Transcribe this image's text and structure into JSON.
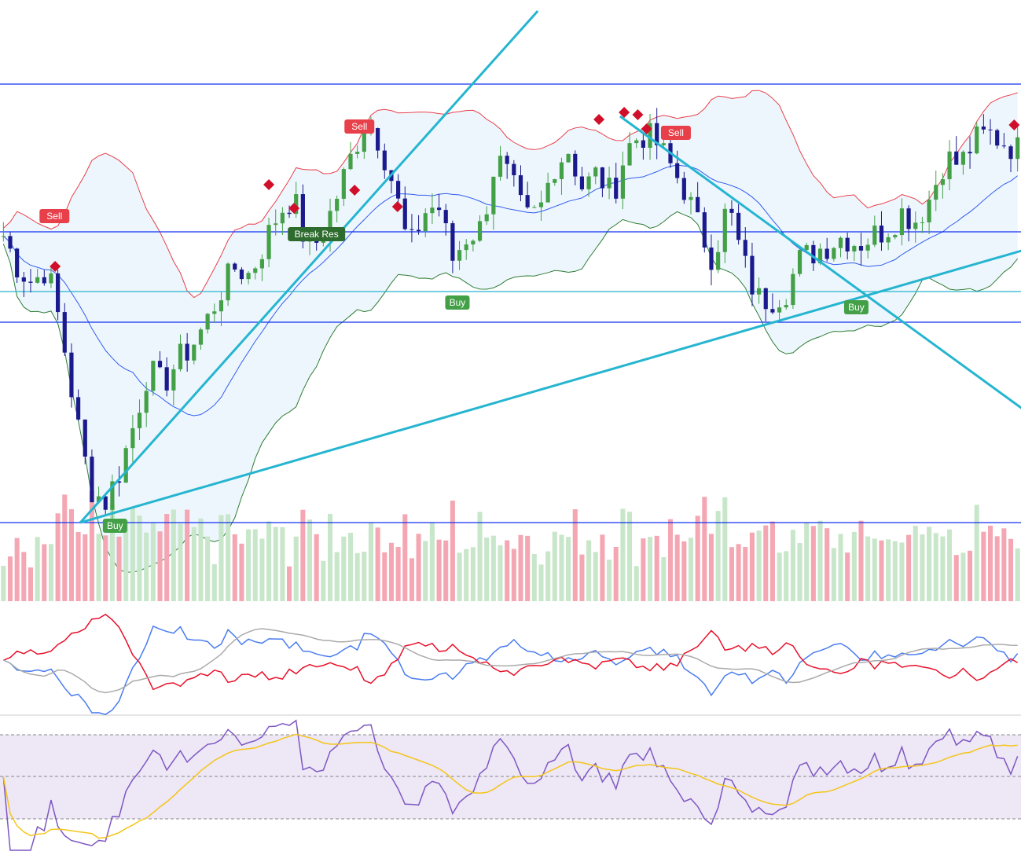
{
  "chart_data": {
    "type": "candlestick",
    "title": "",
    "ylim": [
      0,
      70
    ],
    "bars": 150,
    "close_keypoints": [
      40,
      36,
      34,
      36,
      28,
      17,
      8,
      6,
      10,
      16,
      23,
      21,
      24,
      26,
      29,
      33,
      36,
      35,
      39,
      43,
      45,
      38,
      40,
      45,
      50,
      55,
      52,
      46,
      38,
      43,
      44,
      37,
      40,
      41,
      50,
      47,
      42,
      43,
      49,
      51,
      46,
      48,
      45,
      51,
      53,
      52,
      49,
      46,
      41,
      37,
      44,
      37,
      32,
      32,
      33,
      37,
      38,
      39,
      40,
      39,
      40,
      41,
      43,
      42,
      45,
      50,
      49,
      52,
      53,
      52,
      51
    ],
    "horizontal_levels": [
      59.3,
      40.5,
      32.9,
      29.0,
      3.5
    ],
    "trend_lines": [
      {
        "from": [
          11.3,
          3.5
        ],
        "to": [
          78.5,
          68.6
        ]
      },
      {
        "from": [
          11.3,
          3.5
        ],
        "to": [
          150,
          38.2
        ]
      },
      {
        "from": [
          90.6,
          55.2
        ],
        "to": [
          150,
          17.8
        ]
      }
    ],
    "signals": [
      {
        "type": "sell",
        "label": "Sell",
        "bar": 7.5,
        "price": 42.5
      },
      {
        "type": "sell",
        "label": "Sell",
        "bar": 52.3,
        "price": 53.9
      },
      {
        "type": "sell",
        "label": "Sell",
        "bar": 98.8,
        "price": 53.1
      },
      {
        "type": "buy",
        "label": "Buy",
        "bar": 66.7,
        "price": 31.5
      },
      {
        "type": "buy",
        "label": "Buy",
        "bar": 125.3,
        "price": 30.9
      },
      {
        "type": "buy",
        "label": "Buy",
        "bar": 16.4,
        "price": 3.1
      },
      {
        "type": "break",
        "label": "Break Res",
        "bar": 46,
        "price": 40.2
      }
    ],
    "diamonds": [
      {
        "bar": 7.6,
        "price": 36.1
      },
      {
        "bar": 39,
        "price": 46.5
      },
      {
        "bar": 42.7,
        "price": 43.5
      },
      {
        "bar": 51.6,
        "price": 45.8
      },
      {
        "bar": 57.9,
        "price": 43.7
      },
      {
        "bar": 87.5,
        "price": 54.8
      },
      {
        "bar": 91.2,
        "price": 55.7
      },
      {
        "bar": 93.2,
        "price": 55.4
      },
      {
        "bar": 94.5,
        "price": 53.6
      },
      {
        "bar": 148.5,
        "price": 54.1
      }
    ],
    "colors": {
      "up": "#43a047",
      "down": "#1a1a8c",
      "level": "#1030f0",
      "level_cyan": "#26b5d0",
      "trend": "#26b5d0",
      "sell": "#e8404a",
      "buy": "#43a047",
      "rsi": "#7e57c2",
      "rsi_ma": "#f5c518"
    },
    "panels": [
      "price",
      "volume",
      "oscillator",
      "rsi"
    ]
  }
}
